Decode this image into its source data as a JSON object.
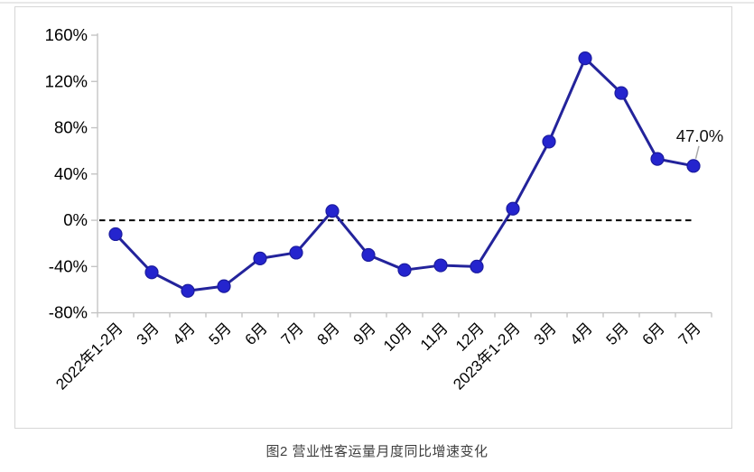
{
  "page": {
    "caption": "图2  营业性客运量月度同比增速变化"
  },
  "chart_data": {
    "type": "line",
    "title": "",
    "xlabel": "",
    "ylabel": "",
    "categories": [
      "2022年1-2月",
      "3月",
      "4月",
      "5月",
      "6月",
      "7月",
      "8月",
      "9月",
      "10月",
      "11月",
      "12月",
      "2023年1-2月",
      "3月",
      "4月",
      "5月",
      "6月",
      "7月"
    ],
    "series": [
      {
        "name": "营业性客运量月度同比增速",
        "values": [
          -12,
          -45,
          -61,
          -57,
          -33,
          -28,
          8,
          -30,
          -43,
          -39,
          -40,
          10,
          68,
          140,
          110,
          53,
          47
        ]
      }
    ],
    "ylim": [
      -80,
      160
    ],
    "yticks": [
      160,
      120,
      80,
      40,
      0,
      -40,
      -80
    ],
    "ytick_suffix": "%",
    "grid": false,
    "legend": false,
    "zero_line_style": "dashed",
    "zero_line_color": "#000000",
    "line_color": "#23239b",
    "marker_color": "#2424ce",
    "marker_edge_color": "#1b1b9e",
    "axis_color": "#c4c4c4",
    "tick_label_color": "#000000",
    "annotation": {
      "text": "47.0%",
      "point_index": 16,
      "leader_color": "#a8a8a8"
    }
  }
}
